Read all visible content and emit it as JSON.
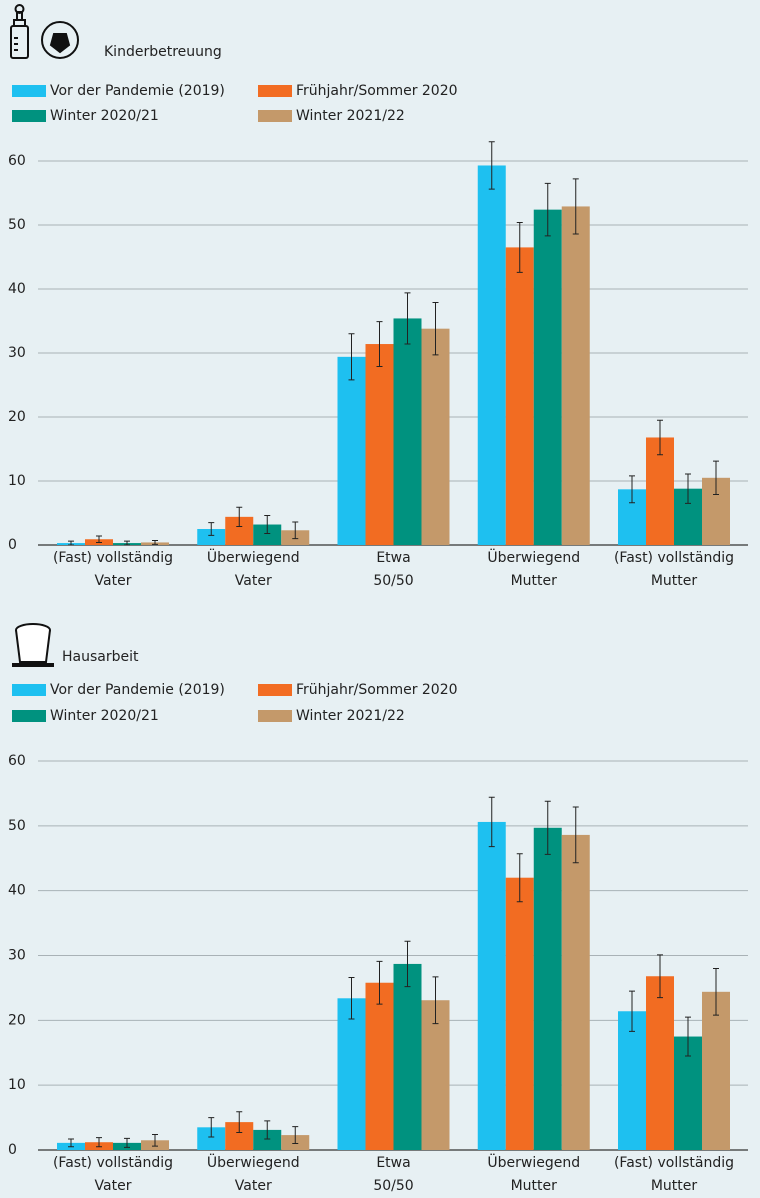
{
  "chart_data": [
    {
      "type": "bar",
      "title": "Kinderbetreuung",
      "categories": [
        "(Fast) vollständig\nVater",
        "Überwiegend\nVater",
        "Etwa\n50/50",
        "Überwiegend\nMutter",
        "(Fast) vollständig\nMutter"
      ],
      "series": [
        {
          "name": "Vor der Pandemie (2019)",
          "color": "#1ec0f0",
          "values": [
            0.3,
            2.5,
            29.4,
            59.3,
            8.7
          ],
          "errors": [
            0.3,
            1.0,
            3.6,
            3.7,
            2.1
          ]
        },
        {
          "name": "Frühjahr/Sommer 2020",
          "color": "#f26c22",
          "values": [
            0.9,
            4.4,
            31.4,
            46.5,
            16.8
          ],
          "errors": [
            0.5,
            1.5,
            3.5,
            3.9,
            2.7
          ]
        },
        {
          "name": "Winter 2020/21",
          "color": "#00927f",
          "values": [
            0.3,
            3.2,
            35.4,
            52.4,
            8.8
          ],
          "errors": [
            0.3,
            1.4,
            4.0,
            4.1,
            2.3
          ]
        },
        {
          "name": "Winter 2021/22",
          "color": "#c4996a",
          "values": [
            0.4,
            2.3,
            33.8,
            52.9,
            10.5
          ],
          "errors": [
            0.3,
            1.3,
            4.1,
            4.3,
            2.6
          ]
        }
      ],
      "ylim": [
        0,
        60
      ],
      "yticks": [
        0,
        10,
        20,
        30,
        40,
        50,
        60
      ],
      "grid": true
    },
    {
      "type": "bar",
      "title": "Hausarbeit",
      "categories": [
        "(Fast) vollständig\nVater",
        "Überwiegend\nVater",
        "Etwa\n50/50",
        "Überwiegend\nMutter",
        "(Fast) vollständig\nMutter"
      ],
      "series": [
        {
          "name": "Vor der Pandemie (2019)",
          "color": "#1ec0f0",
          "values": [
            1.1,
            3.5,
            23.4,
            50.6,
            21.4
          ],
          "errors": [
            0.6,
            1.5,
            3.2,
            3.8,
            3.1
          ]
        },
        {
          "name": "Frühjahr/Sommer 2020",
          "color": "#f26c22",
          "values": [
            1.2,
            4.3,
            25.8,
            42.0,
            26.8
          ],
          "errors": [
            0.7,
            1.6,
            3.3,
            3.7,
            3.3
          ]
        },
        {
          "name": "Winter 2020/21",
          "color": "#00927f",
          "values": [
            1.1,
            3.1,
            28.7,
            49.7,
            17.5
          ],
          "errors": [
            0.7,
            1.4,
            3.5,
            4.1,
            3.0
          ]
        },
        {
          "name": "Winter 2021/22",
          "color": "#c4996a",
          "values": [
            1.5,
            2.3,
            23.1,
            48.6,
            24.4
          ],
          "errors": [
            0.9,
            1.3,
            3.6,
            4.3,
            3.6
          ]
        }
      ],
      "ylim": [
        0,
        60
      ],
      "yticks": [
        0,
        10,
        20,
        30,
        40,
        50,
        60
      ],
      "grid": true
    }
  ]
}
